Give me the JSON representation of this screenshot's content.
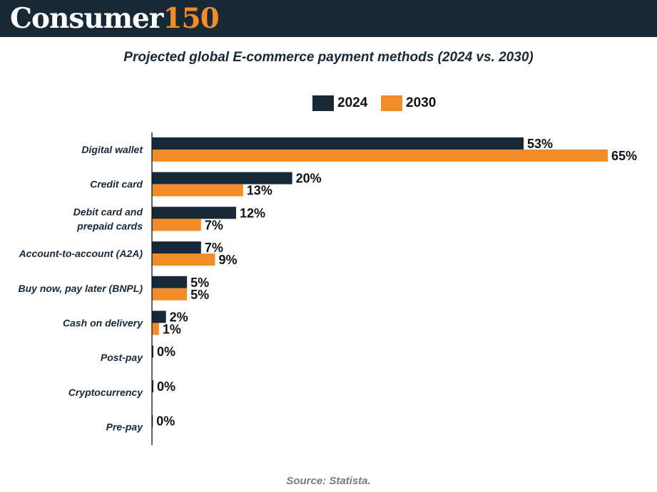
{
  "brand": {
    "name": "Consumer",
    "number": "150"
  },
  "source": "Source: Statista.",
  "colors": {
    "header_bg": "#172936",
    "series_2024": "#172936",
    "series_2030": "#f28c28"
  },
  "chart_data": {
    "type": "bar",
    "orientation": "horizontal",
    "title": "Projected global E-commerce payment methods (2024 vs. 2030)",
    "categories": [
      [
        "Digital wallet"
      ],
      [
        "Credit card"
      ],
      [
        "Debit card and",
        "prepaid cards"
      ],
      [
        "Account-to-account (A2A)"
      ],
      [
        "Buy now, pay later (BNPL)"
      ],
      [
        "Cash on delivery"
      ],
      [
        "Post-pay"
      ],
      [
        "Cryptocurrency"
      ],
      [
        "Pre-pay"
      ]
    ],
    "series": [
      {
        "name": "2024",
        "color": "#172936",
        "values": [
          53,
          20,
          12,
          7,
          5,
          2,
          0.2,
          0.2,
          0.1
        ],
        "labels": [
          "53%",
          "20%",
          "12%",
          "7%",
          "5%",
          "2%",
          "0%",
          "0%",
          "0%"
        ]
      },
      {
        "name": "2030",
        "color": "#f28c28",
        "values": [
          65,
          13,
          7,
          9,
          5,
          1,
          null,
          null,
          null
        ],
        "labels": [
          "65%",
          "13%",
          "7%",
          "9%",
          "5%",
          "1%",
          "",
          "",
          ""
        ]
      }
    ],
    "xlim": [
      0,
      65
    ],
    "legend": "top-center",
    "grid": false,
    "value_suffix": "%"
  }
}
